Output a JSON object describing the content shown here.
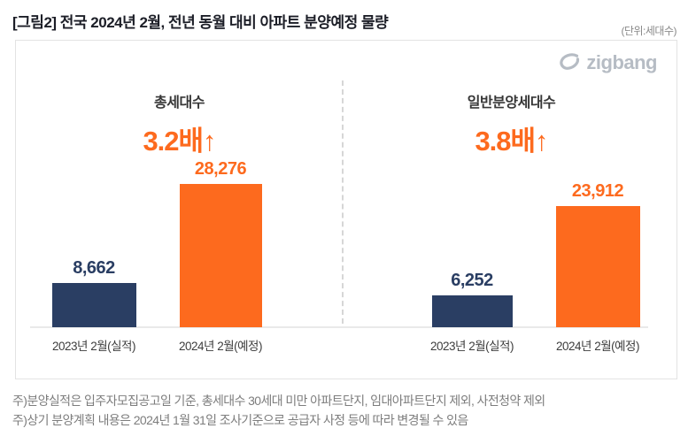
{
  "header": {
    "title": "[그림2] 전국 2024년 2월, 전년 동월 대비 아파트 분양예정 물량",
    "unit": "(단위:세대수)"
  },
  "logo": {
    "text": "zigbang"
  },
  "colors": {
    "navy": "#2a3e63",
    "orange": "#fd6a1e",
    "logo_gray": "#b6bcc4"
  },
  "chart_data": {
    "type": "bar",
    "unit": "세대수",
    "legend_position": "none",
    "grid": false,
    "ylim": [
      0,
      28276
    ],
    "categories": [
      "2023년 2월(실적)",
      "2024년 2월(예정)"
    ],
    "groups": [
      {
        "name": "총세대수",
        "multiplier": "3.2배↑",
        "bars": [
          {
            "category": "2023년 2월(실적)",
            "value": 8662,
            "label": "8,662",
            "color_key": "navy"
          },
          {
            "category": "2024년 2월(예정)",
            "value": 28276,
            "label": "28,276",
            "color_key": "orange"
          }
        ]
      },
      {
        "name": "일반분양세대수",
        "multiplier": "3.8배↑",
        "bars": [
          {
            "category": "2023년 2월(실적)",
            "value": 6252,
            "label": "6,252",
            "color_key": "navy"
          },
          {
            "category": "2024년 2월(예정)",
            "value": 23912,
            "label": "23,912",
            "color_key": "orange"
          }
        ]
      }
    ]
  },
  "footnotes": [
    "주)분양실적은 입주자모집공고일 기준, 총세대수 30세대 미만 아파트단지, 임대아파트단지 제외, 사전청약 제외",
    "주)상기 분양계획 내용은 2024년 1월 31일 조사기준으로 공급자 사정 등에 따라 변경될 수 있음"
  ]
}
